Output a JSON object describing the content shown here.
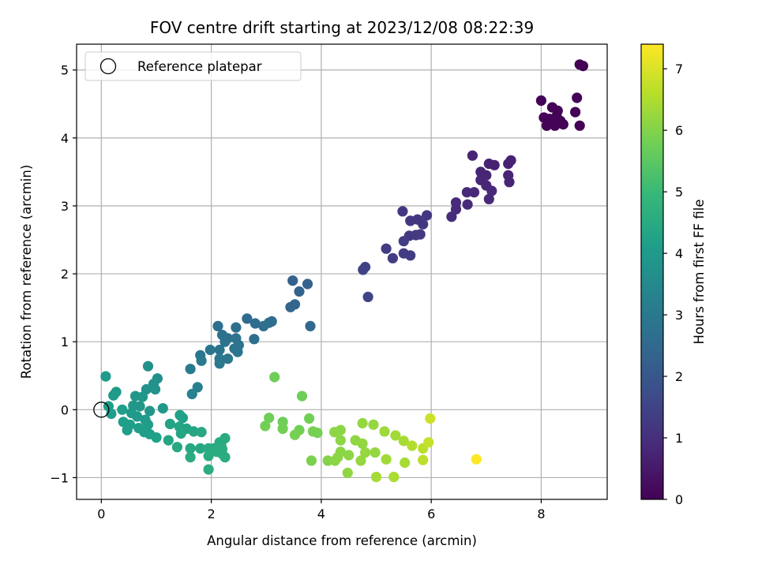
{
  "chart_data": {
    "type": "scatter",
    "title": "FOV centre drift starting at 2023/12/08 08:22:39",
    "xlabel": "Angular distance from reference (arcmin)",
    "ylabel": "Rotation from reference (arcmin)",
    "xlim": [
      -0.45,
      9.2
    ],
    "ylim": [
      -1.32,
      5.38
    ],
    "xticks": [
      0,
      2,
      4,
      6,
      8
    ],
    "yticks": [
      -1,
      0,
      1,
      2,
      3,
      4,
      5
    ],
    "grid": true,
    "legend": {
      "placement": "top-left",
      "entries": [
        "Reference platepar"
      ]
    },
    "reference_point": {
      "x": 0,
      "y": 0
    },
    "colorbar": {
      "label": "Hours from first FF file",
      "range": [
        0,
        7.4
      ],
      "ticks": [
        0,
        1,
        2,
        3,
        4,
        5,
        6,
        7
      ],
      "colormap": "viridis"
    },
    "points": [
      {
        "x": 8.7,
        "y": 5.08,
        "c": 0.0
      },
      {
        "x": 8.76,
        "y": 5.06,
        "c": 0.0
      },
      {
        "x": 8.0,
        "y": 4.55,
        "c": 0.05
      },
      {
        "x": 8.65,
        "y": 4.59,
        "c": 0.05
      },
      {
        "x": 8.2,
        "y": 4.45,
        "c": 0.05
      },
      {
        "x": 8.3,
        "y": 4.4,
        "c": 0.05
      },
      {
        "x": 8.05,
        "y": 4.3,
        "c": 0.05
      },
      {
        "x": 8.62,
        "y": 4.38,
        "c": 0.05
      },
      {
        "x": 8.15,
        "y": 4.28,
        "c": 0.05
      },
      {
        "x": 8.4,
        "y": 4.2,
        "c": 0.05
      },
      {
        "x": 8.1,
        "y": 4.18,
        "c": 0.05
      },
      {
        "x": 8.25,
        "y": 4.18,
        "c": 0.05
      },
      {
        "x": 8.35,
        "y": 4.25,
        "c": 0.05
      },
      {
        "x": 8.7,
        "y": 4.18,
        "c": 0.05
      },
      {
        "x": 8.28,
        "y": 4.32,
        "c": 0.05
      },
      {
        "x": 6.75,
        "y": 3.74,
        "c": 0.75
      },
      {
        "x": 7.05,
        "y": 3.62,
        "c": 0.7
      },
      {
        "x": 7.15,
        "y": 3.6,
        "c": 0.7
      },
      {
        "x": 7.45,
        "y": 3.67,
        "c": 0.7
      },
      {
        "x": 7.4,
        "y": 3.62,
        "c": 0.7
      },
      {
        "x": 6.9,
        "y": 3.5,
        "c": 0.75
      },
      {
        "x": 7.0,
        "y": 3.45,
        "c": 0.75
      },
      {
        "x": 7.4,
        "y": 3.45,
        "c": 0.75
      },
      {
        "x": 7.42,
        "y": 3.35,
        "c": 0.75
      },
      {
        "x": 6.9,
        "y": 3.38,
        "c": 0.8
      },
      {
        "x": 7.0,
        "y": 3.3,
        "c": 0.8
      },
      {
        "x": 7.1,
        "y": 3.22,
        "c": 0.85
      },
      {
        "x": 6.65,
        "y": 3.2,
        "c": 0.85
      },
      {
        "x": 6.78,
        "y": 3.2,
        "c": 0.85
      },
      {
        "x": 7.05,
        "y": 3.1,
        "c": 0.85
      },
      {
        "x": 6.45,
        "y": 3.05,
        "c": 0.9
      },
      {
        "x": 6.45,
        "y": 2.95,
        "c": 0.9
      },
      {
        "x": 6.66,
        "y": 3.02,
        "c": 0.9
      },
      {
        "x": 6.37,
        "y": 2.84,
        "c": 0.95
      },
      {
        "x": 5.48,
        "y": 2.92,
        "c": 1.2
      },
      {
        "x": 5.62,
        "y": 2.78,
        "c": 1.2
      },
      {
        "x": 5.75,
        "y": 2.8,
        "c": 1.2
      },
      {
        "x": 5.92,
        "y": 2.86,
        "c": 1.2
      },
      {
        "x": 5.85,
        "y": 2.73,
        "c": 1.2
      },
      {
        "x": 5.6,
        "y": 2.56,
        "c": 1.25
      },
      {
        "x": 5.72,
        "y": 2.57,
        "c": 1.25
      },
      {
        "x": 5.8,
        "y": 2.58,
        "c": 1.25
      },
      {
        "x": 5.5,
        "y": 2.48,
        "c": 1.3
      },
      {
        "x": 5.18,
        "y": 2.37,
        "c": 1.3
      },
      {
        "x": 5.3,
        "y": 2.23,
        "c": 1.3
      },
      {
        "x": 5.5,
        "y": 2.3,
        "c": 1.3
      },
      {
        "x": 5.62,
        "y": 2.27,
        "c": 1.3
      },
      {
        "x": 4.76,
        "y": 2.06,
        "c": 1.45
      },
      {
        "x": 4.8,
        "y": 2.1,
        "c": 1.45
      },
      {
        "x": 4.85,
        "y": 1.66,
        "c": 1.5
      },
      {
        "x": 3.48,
        "y": 1.9,
        "c": 2.3
      },
      {
        "x": 3.75,
        "y": 1.85,
        "c": 2.3
      },
      {
        "x": 3.6,
        "y": 1.74,
        "c": 2.35
      },
      {
        "x": 3.52,
        "y": 1.55,
        "c": 2.4
      },
      {
        "x": 3.44,
        "y": 1.51,
        "c": 2.4
      },
      {
        "x": 3.8,
        "y": 1.23,
        "c": 2.5
      },
      {
        "x": 2.65,
        "y": 1.34,
        "c": 2.6
      },
      {
        "x": 2.8,
        "y": 1.27,
        "c": 2.6
      },
      {
        "x": 3.05,
        "y": 1.28,
        "c": 2.6
      },
      {
        "x": 2.95,
        "y": 1.23,
        "c": 2.65
      },
      {
        "x": 3.1,
        "y": 1.3,
        "c": 2.65
      },
      {
        "x": 2.78,
        "y": 1.04,
        "c": 2.7
      },
      {
        "x": 2.12,
        "y": 1.23,
        "c": 2.7
      },
      {
        "x": 2.45,
        "y": 1.21,
        "c": 2.7
      },
      {
        "x": 2.2,
        "y": 1.1,
        "c": 2.75
      },
      {
        "x": 2.3,
        "y": 1.05,
        "c": 2.75
      },
      {
        "x": 2.45,
        "y": 1.05,
        "c": 2.8
      },
      {
        "x": 2.25,
        "y": 1.0,
        "c": 2.8
      },
      {
        "x": 2.5,
        "y": 0.95,
        "c": 2.85
      },
      {
        "x": 2.42,
        "y": 0.9,
        "c": 2.85
      },
      {
        "x": 2.15,
        "y": 0.88,
        "c": 2.85
      },
      {
        "x": 1.98,
        "y": 0.88,
        "c": 2.9
      },
      {
        "x": 1.8,
        "y": 0.8,
        "c": 2.9
      },
      {
        "x": 2.48,
        "y": 0.85,
        "c": 2.9
      },
      {
        "x": 2.15,
        "y": 0.75,
        "c": 2.95
      },
      {
        "x": 2.3,
        "y": 0.75,
        "c": 2.95
      },
      {
        "x": 1.82,
        "y": 0.72,
        "c": 3.0
      },
      {
        "x": 2.15,
        "y": 0.68,
        "c": 3.0
      },
      {
        "x": 1.62,
        "y": 0.6,
        "c": 3.1
      },
      {
        "x": 1.75,
        "y": 0.33,
        "c": 3.2
      },
      {
        "x": 1.65,
        "y": 0.23,
        "c": 3.25
      },
      {
        "x": 0.08,
        "y": 0.49,
        "c": 4.0
      },
      {
        "x": 0.85,
        "y": 0.64,
        "c": 3.7
      },
      {
        "x": 1.02,
        "y": 0.46,
        "c": 3.7
      },
      {
        "x": 0.95,
        "y": 0.38,
        "c": 3.75
      },
      {
        "x": 0.82,
        "y": 0.3,
        "c": 3.75
      },
      {
        "x": 0.98,
        "y": 0.3,
        "c": 3.75
      },
      {
        "x": 0.27,
        "y": 0.26,
        "c": 4.0
      },
      {
        "x": 0.22,
        "y": 0.21,
        "c": 4.0
      },
      {
        "x": 0.62,
        "y": 0.2,
        "c": 3.9
      },
      {
        "x": 0.75,
        "y": 0.19,
        "c": 3.9
      },
      {
        "x": 0.58,
        "y": 0.06,
        "c": 3.9
      },
      {
        "x": 0.7,
        "y": 0.05,
        "c": 3.9
      },
      {
        "x": 0.88,
        "y": -0.02,
        "c": 3.9
      },
      {
        "x": 1.12,
        "y": 0.02,
        "c": 3.9
      },
      {
        "x": 0.13,
        "y": 0.05,
        "c": 4.1
      },
      {
        "x": 0.38,
        "y": 0.0,
        "c": 4.1
      },
      {
        "x": 0.18,
        "y": -0.06,
        "c": 4.1
      },
      {
        "x": 0.55,
        "y": -0.05,
        "c": 4.0
      },
      {
        "x": 0.65,
        "y": -0.1,
        "c": 4.0
      },
      {
        "x": 0.4,
        "y": -0.18,
        "c": 4.1
      },
      {
        "x": 0.52,
        "y": -0.22,
        "c": 4.1
      },
      {
        "x": 0.8,
        "y": -0.15,
        "c": 4.0
      },
      {
        "x": 0.85,
        "y": -0.22,
        "c": 4.05
      },
      {
        "x": 0.68,
        "y": -0.27,
        "c": 4.1
      },
      {
        "x": 0.47,
        "y": -0.3,
        "c": 4.1
      },
      {
        "x": 0.78,
        "y": -0.33,
        "c": 4.1
      },
      {
        "x": 0.88,
        "y": -0.36,
        "c": 4.1
      },
      {
        "x": 1.0,
        "y": -0.41,
        "c": 4.2
      },
      {
        "x": 1.43,
        "y": -0.08,
        "c": 4.2
      },
      {
        "x": 1.48,
        "y": -0.12,
        "c": 4.2
      },
      {
        "x": 1.25,
        "y": -0.21,
        "c": 4.25
      },
      {
        "x": 1.42,
        "y": -0.25,
        "c": 4.3
      },
      {
        "x": 1.55,
        "y": -0.28,
        "c": 4.3
      },
      {
        "x": 1.45,
        "y": -0.35,
        "c": 4.35
      },
      {
        "x": 1.68,
        "y": -0.32,
        "c": 4.35
      },
      {
        "x": 1.82,
        "y": -0.33,
        "c": 4.4
      },
      {
        "x": 1.22,
        "y": -0.45,
        "c": 4.35
      },
      {
        "x": 1.38,
        "y": -0.55,
        "c": 4.4
      },
      {
        "x": 1.62,
        "y": -0.57,
        "c": 4.45
      },
      {
        "x": 1.8,
        "y": -0.57,
        "c": 4.45
      },
      {
        "x": 1.95,
        "y": -0.57,
        "c": 4.5
      },
      {
        "x": 2.05,
        "y": -0.57,
        "c": 4.5
      },
      {
        "x": 2.15,
        "y": -0.48,
        "c": 4.5
      },
      {
        "x": 2.25,
        "y": -0.42,
        "c": 4.5
      },
      {
        "x": 2.18,
        "y": -0.52,
        "c": 4.5
      },
      {
        "x": 1.62,
        "y": -0.7,
        "c": 4.55
      },
      {
        "x": 1.95,
        "y": -0.68,
        "c": 4.55
      },
      {
        "x": 2.1,
        "y": -0.62,
        "c": 4.55
      },
      {
        "x": 2.2,
        "y": -0.65,
        "c": 4.55
      },
      {
        "x": 2.25,
        "y": -0.7,
        "c": 4.55
      },
      {
        "x": 2.2,
        "y": -0.58,
        "c": 4.55
      },
      {
        "x": 1.95,
        "y": -0.88,
        "c": 4.6
      },
      {
        "x": 3.15,
        "y": 0.48,
        "c": 5.75
      },
      {
        "x": 3.65,
        "y": 0.2,
        "c": 5.75
      },
      {
        "x": 3.05,
        "y": -0.12,
        "c": 5.75
      },
      {
        "x": 3.3,
        "y": -0.18,
        "c": 5.75
      },
      {
        "x": 3.78,
        "y": -0.13,
        "c": 5.8
      },
      {
        "x": 2.98,
        "y": -0.24,
        "c": 5.8
      },
      {
        "x": 3.3,
        "y": -0.28,
        "c": 5.8
      },
      {
        "x": 3.6,
        "y": -0.3,
        "c": 5.8
      },
      {
        "x": 3.52,
        "y": -0.37,
        "c": 5.85
      },
      {
        "x": 3.85,
        "y": -0.32,
        "c": 5.85
      },
      {
        "x": 3.93,
        "y": -0.34,
        "c": 5.85
      },
      {
        "x": 3.82,
        "y": -0.75,
        "c": 5.9
      },
      {
        "x": 4.12,
        "y": -0.75,
        "c": 6.0
      },
      {
        "x": 4.24,
        "y": -0.33,
        "c": 6.1
      },
      {
        "x": 4.35,
        "y": -0.3,
        "c": 6.1
      },
      {
        "x": 4.35,
        "y": -0.45,
        "c": 6.1
      },
      {
        "x": 4.3,
        "y": -0.7,
        "c": 6.1
      },
      {
        "x": 4.5,
        "y": -0.67,
        "c": 6.1
      },
      {
        "x": 4.35,
        "y": -0.62,
        "c": 6.1
      },
      {
        "x": 4.25,
        "y": -0.75,
        "c": 6.1
      },
      {
        "x": 4.62,
        "y": -0.45,
        "c": 6.15
      },
      {
        "x": 4.75,
        "y": -0.5,
        "c": 6.15
      },
      {
        "x": 4.75,
        "y": -0.2,
        "c": 6.2
      },
      {
        "x": 4.95,
        "y": -0.22,
        "c": 6.2
      },
      {
        "x": 4.8,
        "y": -0.63,
        "c": 6.2
      },
      {
        "x": 4.98,
        "y": -0.63,
        "c": 6.2
      },
      {
        "x": 4.72,
        "y": -0.75,
        "c": 6.2
      },
      {
        "x": 4.48,
        "y": -0.93,
        "c": 6.15
      },
      {
        "x": 5.15,
        "y": -0.32,
        "c": 6.3
      },
      {
        "x": 5.35,
        "y": -0.38,
        "c": 6.35
      },
      {
        "x": 5.5,
        "y": -0.46,
        "c": 6.4
      },
      {
        "x": 5.18,
        "y": -0.73,
        "c": 6.35
      },
      {
        "x": 5.52,
        "y": -0.78,
        "c": 6.4
      },
      {
        "x": 5.0,
        "y": -0.99,
        "c": 6.4
      },
      {
        "x": 5.32,
        "y": -0.99,
        "c": 6.45
      },
      {
        "x": 5.65,
        "y": -0.53,
        "c": 6.55
      },
      {
        "x": 5.85,
        "y": -0.57,
        "c": 6.65
      },
      {
        "x": 5.95,
        "y": -0.48,
        "c": 6.75
      },
      {
        "x": 5.85,
        "y": -0.74,
        "c": 6.65
      },
      {
        "x": 5.98,
        "y": -0.13,
        "c": 6.85
      },
      {
        "x": 6.82,
        "y": -0.73,
        "c": 7.4
      }
    ]
  }
}
